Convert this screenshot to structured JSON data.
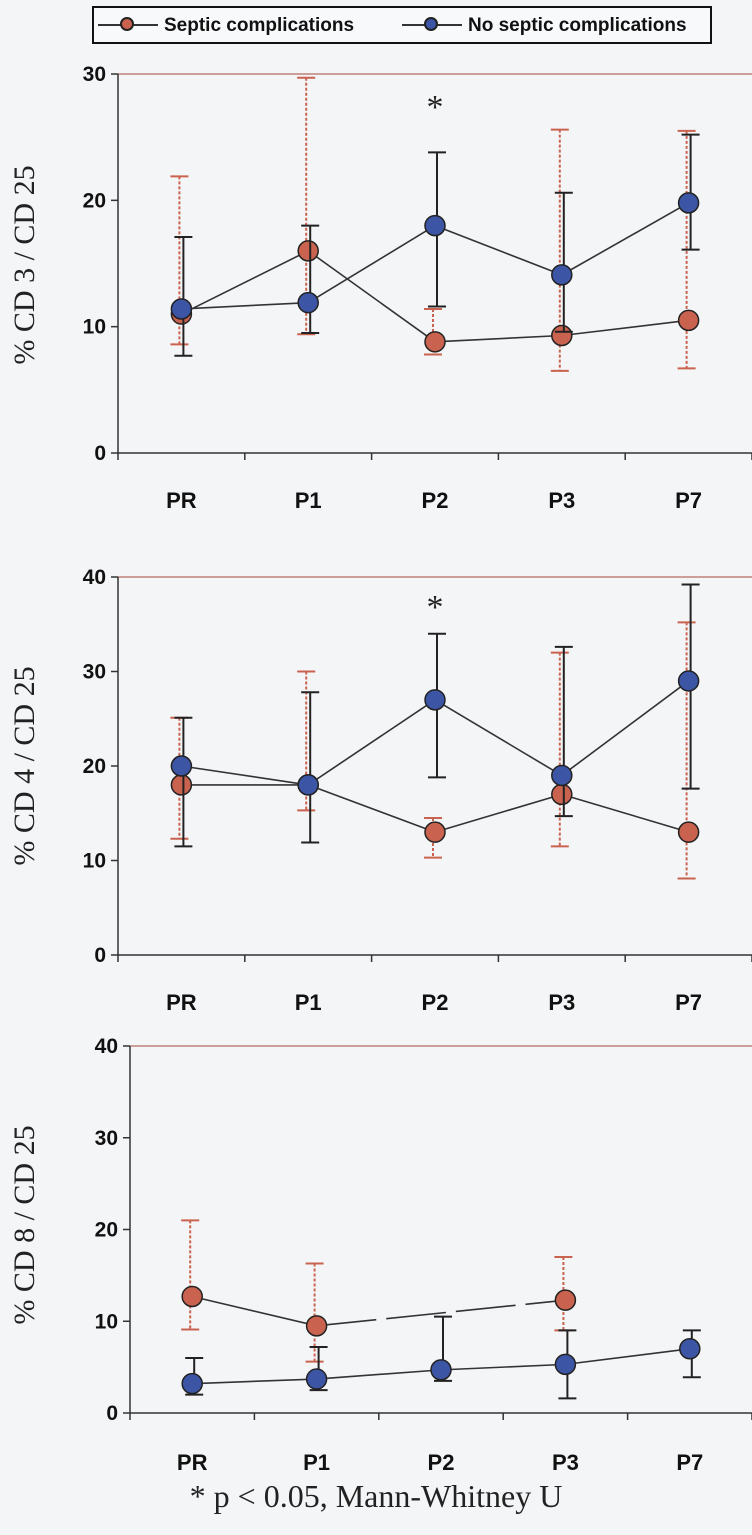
{
  "colors": {
    "septic": "#c9634f",
    "septic_bar": "#c9634f",
    "no_septic": "#3c55a5",
    "no_septic_bar": "#222222",
    "line": "#333333",
    "frame_top": "#b36b63",
    "axis": "#333333"
  },
  "legend": {
    "septic_label": "Septic complications",
    "no_septic_label": "No septic complications"
  },
  "footnote": "* p < 0.05, Mann-Whitney U",
  "chart_data": [
    {
      "type": "line",
      "ylabel": "% CD 3 / CD 25",
      "ylim": [
        0,
        30
      ],
      "yticks": [
        0,
        10,
        20,
        30
      ],
      "categories": [
        "PR",
        "P1",
        "P2",
        "P3",
        "P7"
      ],
      "significance": [
        {
          "category": "P2",
          "label": "*"
        }
      ],
      "series": [
        {
          "name": "Septic complications",
          "key": "septic",
          "values": [
            11.0,
            16.0,
            8.8,
            9.3,
            10.5
          ],
          "err_low": [
            8.6,
            9.4,
            7.8,
            6.5,
            6.7
          ],
          "err_high": [
            21.9,
            29.7,
            11.4,
            25.6,
            25.5
          ]
        },
        {
          "name": "No septic complications",
          "key": "no_septic",
          "values": [
            11.4,
            11.9,
            18.0,
            14.1,
            19.8
          ],
          "err_low": [
            7.7,
            9.5,
            11.6,
            9.6,
            16.1
          ],
          "err_high": [
            17.1,
            18.0,
            23.8,
            20.6,
            25.2
          ]
        }
      ]
    },
    {
      "type": "line",
      "ylabel": "% CD 4 / CD 25",
      "ylim": [
        0,
        40
      ],
      "yticks": [
        0,
        10,
        20,
        30,
        40
      ],
      "categories": [
        "PR",
        "P1",
        "P2",
        "P3",
        "P7"
      ],
      "significance": [
        {
          "category": "P2",
          "label": "*"
        }
      ],
      "series": [
        {
          "name": "Septic complications",
          "key": "septic",
          "values": [
            18.0,
            18.0,
            13.0,
            17.0,
            13.0
          ],
          "err_low": [
            12.3,
            15.3,
            10.3,
            11.5,
            8.1
          ],
          "err_high": [
            25.1,
            30.0,
            14.5,
            32.0,
            35.2
          ]
        },
        {
          "name": "No septic complications",
          "key": "no_septic",
          "values": [
            20.0,
            18.0,
            27.0,
            19.0,
            29.0
          ],
          "err_low": [
            11.5,
            11.9,
            18.8,
            14.7,
            17.6
          ],
          "err_high": [
            25.1,
            27.8,
            34.0,
            32.6,
            39.2
          ]
        }
      ]
    },
    {
      "type": "line",
      "ylabel": "% CD 8 / CD 25",
      "ylim": [
        0,
        40
      ],
      "yticks": [
        0,
        10,
        20,
        30,
        40
      ],
      "categories": [
        "PR",
        "P1",
        "P2",
        "P3",
        "P7"
      ],
      "significance": [],
      "series": [
        {
          "name": "Septic complications",
          "key": "septic",
          "values": [
            12.7,
            9.5,
            null,
            12.3,
            null
          ],
          "err_low": [
            9.1,
            5.6,
            null,
            9.0,
            null
          ],
          "err_high": [
            21.0,
            16.3,
            null,
            17.0,
            null
          ]
        },
        {
          "name": "No septic complications",
          "key": "no_septic",
          "values": [
            3.2,
            3.7,
            4.7,
            5.3,
            7.0
          ],
          "err_low": [
            2.0,
            2.5,
            3.5,
            1.6,
            3.9
          ],
          "err_high": [
            6.0,
            7.2,
            10.5,
            9.0,
            9.0
          ]
        }
      ]
    }
  ]
}
